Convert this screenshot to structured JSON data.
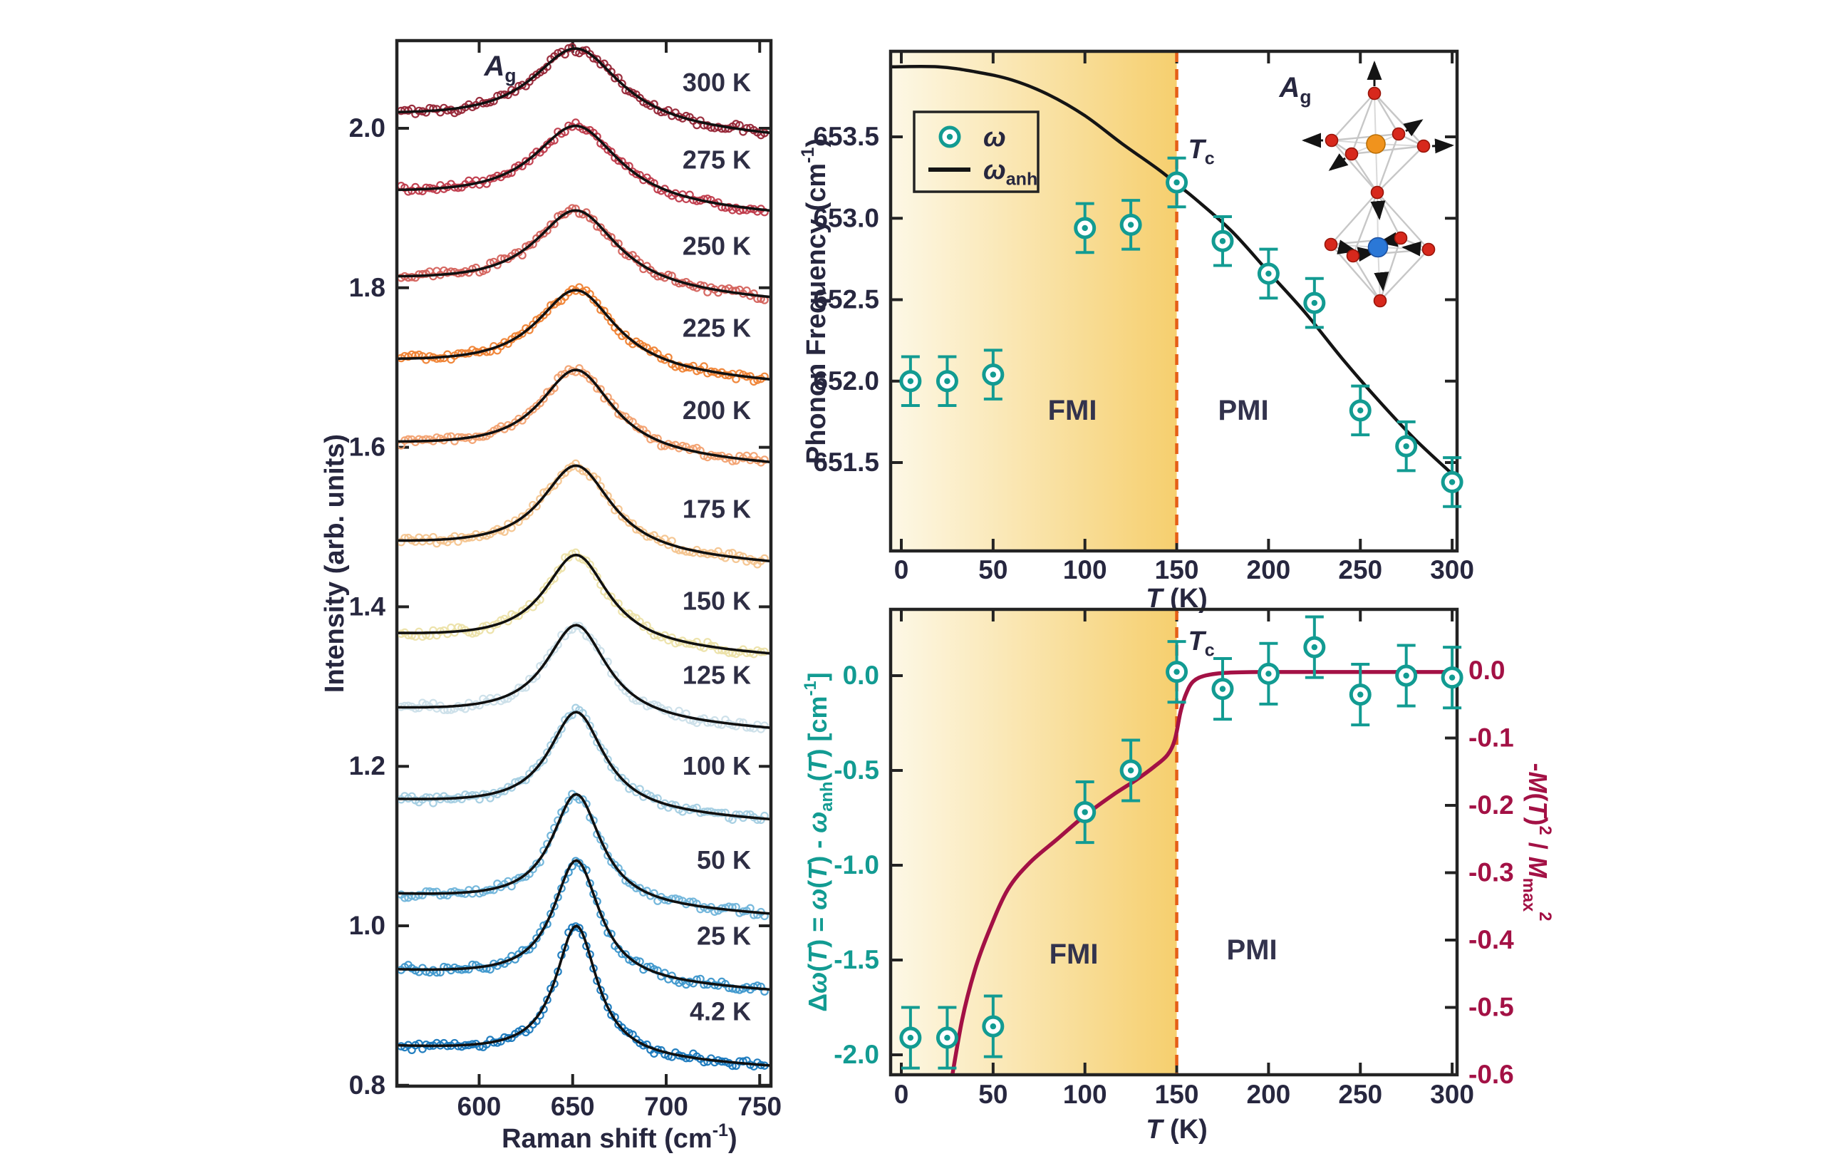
{
  "colors": {
    "background": "#ffffff",
    "frame": "#232323",
    "tick_text": "#27273f",
    "region_label": "#33334d",
    "temp_label": "#2e2e44",
    "teal": "#129b92",
    "magenta": "#a31145",
    "dashed_line": "#e55f17",
    "fit_line": "#101010",
    "anh_line": "#141414",
    "gradient_start": "#fdf8e6",
    "gradient_end": "#f6cf6e"
  },
  "chart_data": [
    {
      "id": "raman_spectra",
      "type": "line",
      "title": "",
      "xlabel": "Raman shift (cm^{-1})",
      "ylabel": "Intensity (arb. units)",
      "mode_label": "*A*_{g}",
      "xlim": [
        556,
        756
      ],
      "ylim": [
        0.8,
        2.11
      ],
      "xticks": [
        "600",
        "650",
        "700",
        "750"
      ],
      "yticks": [
        "2.0",
        "1.8",
        "1.6",
        "1.4",
        "1.2",
        "1.0",
        "0.8"
      ],
      "peak_center_cm1": 652,
      "background_slope_per_cm1": 0.000125,
      "series": [
        {
          "label": "300 K",
          "color": "#962536",
          "baseline": 2.0,
          "amplitude": 0.1,
          "hwhm": 29
        },
        {
          "label": "275 K",
          "color": "#bf3a4a",
          "baseline": 1.903,
          "amplitude": 0.1,
          "hwhm": 28
        },
        {
          "label": "250 K",
          "color": "#d4625c",
          "baseline": 1.795,
          "amplitude": 0.102,
          "hwhm": 27
        },
        {
          "label": "225 K",
          "color": "#ef8233",
          "baseline": 1.692,
          "amplitude": 0.105,
          "hwhm": 26
        },
        {
          "label": "200 K",
          "color": "#f2a170",
          "baseline": 1.589,
          "amplitude": 0.108,
          "hwhm": 24
        },
        {
          "label": "175 K",
          "color": "#f4c48e",
          "baseline": 1.465,
          "amplitude": 0.112,
          "hwhm": 23
        },
        {
          "label": "150 K",
          "color": "#ece1a8",
          "baseline": 1.35,
          "amplitude": 0.115,
          "hwhm": 21
        },
        {
          "label": "125 K",
          "color": "#cbdfe9",
          "baseline": 1.257,
          "amplitude": 0.12,
          "hwhm": 20
        },
        {
          "label": "100 K",
          "color": "#a3cde2",
          "baseline": 1.143,
          "amplitude": 0.125,
          "hwhm": 18
        },
        {
          "label": "50 K",
          "color": "#6fb4da",
          "baseline": 1.025,
          "amplitude": 0.14,
          "hwhm": 16
        },
        {
          "label": "25 K",
          "color": "#3d97cc",
          "baseline": 0.93,
          "amplitude": 0.152,
          "hwhm": 15
        },
        {
          "label": "4.2 K",
          "color": "#1878bd",
          "baseline": 0.835,
          "amplitude": 0.165,
          "hwhm": 13.5
        }
      ]
    },
    {
      "id": "phonon_frequency_vs_T",
      "type": "scatter",
      "xlabel": "*T* (K)",
      "ylabel": "Phonon Frequency (cm^{-1})",
      "xlim": [
        -6,
        308
      ],
      "ylim": [
        650.96,
        654.03
      ],
      "xticks": [
        "0",
        "50",
        "100",
        "150",
        "200",
        "250",
        "300"
      ],
      "yticks": [
        "653.5",
        "653.0",
        "652.5",
        "652.0",
        "651.5"
      ],
      "tc_label": "*T*_{c}",
      "tc_x": 150,
      "mode_label": "*A*_{g}",
      "regions": [
        {
          "label": "FMI"
        },
        {
          "label": "PMI"
        }
      ],
      "legend": [
        {
          "label": "*ω*",
          "marker": "circle-dot"
        },
        {
          "label": "*ω*_{anh}",
          "marker": "line"
        }
      ],
      "series": [
        {
          "name": "omega",
          "type": "scatter",
          "x": [
            5,
            25,
            50,
            100,
            125,
            150,
            175,
            200,
            225,
            250,
            275,
            300
          ],
          "y": [
            652.0,
            652.0,
            652.04,
            652.94,
            652.96,
            653.22,
            652.86,
            652.66,
            652.48,
            651.82,
            651.6,
            651.38
          ],
          "yerr": 0.15
        },
        {
          "name": "omega_anh",
          "type": "line",
          "points": [
            [
              -6,
              653.93
            ],
            [
              20,
              653.93
            ],
            [
              40,
              653.9
            ],
            [
              60,
              653.85
            ],
            [
              80,
              653.76
            ],
            [
              100,
              653.63
            ],
            [
              120,
              653.46
            ],
            [
              140,
              653.3
            ],
            [
              150,
              653.21
            ],
            [
              160,
              653.12
            ],
            [
              180,
              652.92
            ],
            [
              200,
              652.67
            ],
            [
              220,
              652.42
            ],
            [
              240,
              652.14
            ],
            [
              260,
              651.88
            ],
            [
              280,
              651.64
            ],
            [
              300,
              651.43
            ]
          ]
        }
      ],
      "inset": {
        "description": "Ag phonon mode: two corner-sharing octahedra with displacement arrows",
        "oxygen_color": "#d7281c",
        "oxygen_stroke": "#971409",
        "top_center_color": "#f0931d",
        "top_center_stroke": "#b96f06",
        "bottom_center_color": "#2b78d7",
        "bottom_center_stroke": "#1a4fa0",
        "bond_color": "#c7c7c7",
        "arrow_color": "#141414"
      }
    },
    {
      "id": "delta_omega_and_magnetization_vs_T",
      "type": "scatter",
      "xlabel": "*T* (K)",
      "ylabel_left": "Δ*ω*(*T*) = *ω*(*T*) - *ω*_{anh}(*T*) [cm^{-1}]",
      "ylabel_right": "-*M*(*T*)^{2} / *M*_{max}^{2}",
      "xlim": [
        -6,
        308
      ],
      "ylim_left": [
        -2.11,
        0.35
      ],
      "ylim_right": [
        -0.6,
        0.097
      ],
      "xticks": [
        "0",
        "50",
        "100",
        "150",
        "200",
        "250",
        "300"
      ],
      "yticks_left": [
        "0.0",
        "-0.5",
        "-1.0",
        "-1.5",
        "-2.0"
      ],
      "yticks_right": [
        "0.0",
        "-0.1",
        "-0.2",
        "-0.3",
        "-0.4",
        "-0.5",
        "-0.6"
      ],
      "tc_label": "*T*_{c}",
      "tc_x": 150,
      "regions": [
        {
          "label": "FMI"
        },
        {
          "label": "PMI"
        }
      ],
      "series": [
        {
          "name": "delta_omega",
          "type": "scatter",
          "axis": "left",
          "x": [
            5,
            25,
            50,
            100,
            125,
            150,
            175,
            200,
            225,
            250,
            275,
            300
          ],
          "y": [
            -1.91,
            -1.91,
            -1.85,
            -0.72,
            -0.5,
            0.02,
            -0.07,
            0.01,
            0.15,
            -0.1,
            0.0,
            -0.01
          ],
          "yerr": 0.16
        },
        {
          "name": "neg_M2_over_Mmax2",
          "type": "line",
          "axis": "right",
          "points": [
            [
              26,
              -0.63
            ],
            [
              33,
              -0.52
            ],
            [
              40,
              -0.445
            ],
            [
              48,
              -0.385
            ],
            [
              58,
              -0.325
            ],
            [
              70,
              -0.285
            ],
            [
              85,
              -0.25
            ],
            [
              100,
              -0.215
            ],
            [
              115,
              -0.185
            ],
            [
              128,
              -0.162
            ],
            [
              138,
              -0.142
            ],
            [
              145,
              -0.125
            ],
            [
              149,
              -0.102
            ],
            [
              152,
              -0.062
            ],
            [
              155,
              -0.035
            ],
            [
              159,
              -0.016
            ],
            [
              166,
              -0.007
            ],
            [
              178,
              -0.003
            ],
            [
              200,
              -0.002
            ],
            [
              250,
              -0.002
            ],
            [
              303,
              -0.002
            ]
          ]
        }
      ]
    }
  ]
}
